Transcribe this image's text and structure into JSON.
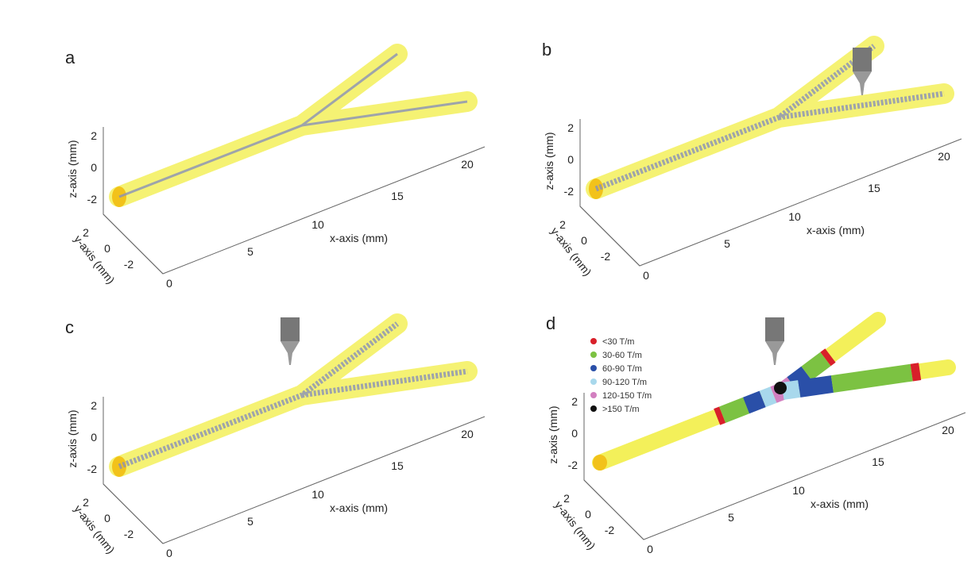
{
  "panels": [
    {
      "label": "a",
      "z_axis": {
        "title": "z-axis (mm)",
        "ticks": [
          "2",
          "0",
          "-2"
        ]
      },
      "y_axis": {
        "title": "y-axis (mm)",
        "ticks": [
          "2",
          "0",
          "-2"
        ]
      },
      "x_axis": {
        "title": "x-axis (mm)",
        "ticks": [
          "0",
          "5",
          "10",
          "15",
          "20"
        ]
      }
    },
    {
      "label": "b",
      "z_axis": {
        "title": "z-axis (mm)",
        "ticks": [
          "2",
          "0",
          "-2"
        ]
      },
      "y_axis": {
        "title": "y-axis (mm)",
        "ticks": [
          "2",
          "0",
          "-2"
        ]
      },
      "x_axis": {
        "title": "x-axis (mm)",
        "ticks": [
          "0",
          "5",
          "10",
          "15",
          "20"
        ]
      }
    },
    {
      "label": "c",
      "z_axis": {
        "title": "z-axis (mm)",
        "ticks": [
          "2",
          "0",
          "-2"
        ]
      },
      "y_axis": {
        "title": "y-axis (mm)",
        "ticks": [
          "2",
          "0",
          "-2"
        ]
      },
      "x_axis": {
        "title": "x-axis (mm)",
        "ticks": [
          "0",
          "5",
          "10",
          "15",
          "20"
        ]
      }
    },
    {
      "label": "d",
      "z_axis": {
        "title": "z-axis (mm)",
        "ticks": [
          "2",
          "0",
          "-2"
        ]
      },
      "y_axis": {
        "title": "y-axis (mm)",
        "ticks": [
          "2",
          "0",
          "-2"
        ]
      },
      "x_axis": {
        "title": "x-axis (mm)",
        "ticks": [
          "0",
          "5",
          "10",
          "15",
          "20"
        ]
      },
      "legend": [
        {
          "label": "<30 T/m",
          "color": "#d8202a"
        },
        {
          "label": "30-60 T/m",
          "color": "#7cc242"
        },
        {
          "label": "60-90 T/m",
          "color": "#2a4fa8"
        },
        {
          "label": "90-120 T/m",
          "color": "#a8d8ec"
        },
        {
          "label": "120-150 T/m",
          "color": "#d27fc0"
        },
        {
          "label": ">150 T/m",
          "color": "#111111"
        }
      ]
    }
  ]
}
